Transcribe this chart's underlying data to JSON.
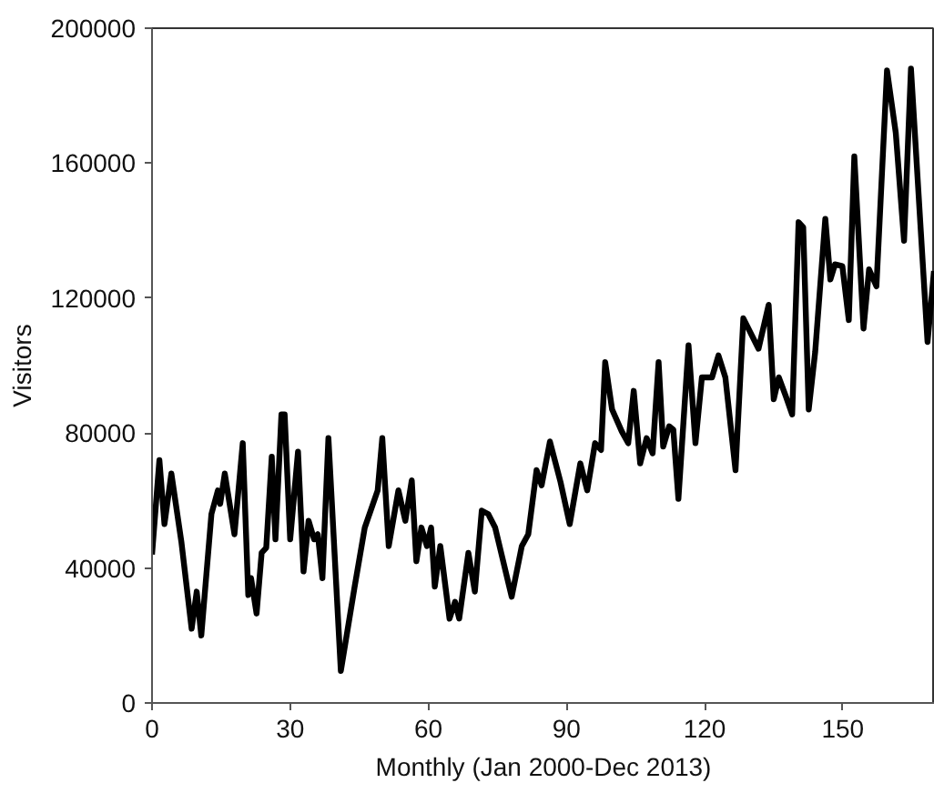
{
  "chart_data": {
    "type": "line",
    "xlabel": "Monthly (Jan 2000-Dec 2013)",
    "ylabel": "Visitors",
    "xlim": [
      0,
      170
    ],
    "ylim": [
      0,
      200000
    ],
    "xticks": [
      0,
      30,
      60,
      90,
      120,
      150
    ],
    "yticks": [
      0,
      40000,
      80000,
      120000,
      160000,
      200000
    ],
    "grid": false,
    "marker": "none",
    "line_style": "solid",
    "series": [
      {
        "color": "#000000",
        "x": [
          0,
          1.6,
          2.7,
          4.2,
          6.4,
          8.6,
          9.7,
          10.7,
          12.9,
          14.3,
          14.8,
          15.8,
          17.9,
          19.7,
          20.9,
          21.5,
          22.7,
          23.8,
          24.8,
          26,
          26.8,
          28.1,
          28.8,
          30,
          31.7,
          32.9,
          34,
          35.2,
          36,
          37,
          38.3,
          41,
          44,
          46.2,
          49,
          50,
          51.4,
          53.5,
          55,
          56.4,
          57.4,
          58.5,
          59.7,
          60.6,
          61.4,
          62.6,
          64.6,
          65.8,
          66.7,
          68.7,
          70.1,
          71.6,
          73,
          74.5,
          78.1,
          80.3,
          81.7,
          83.5,
          84.6,
          86.4,
          88.7,
          90.7,
          93,
          94.5,
          96.2,
          97.5,
          98.4,
          99.9,
          102,
          103.4,
          104.6,
          106,
          107.4,
          108.7,
          110,
          111,
          112.3,
          113.2,
          114.3,
          116.5,
          118,
          119.4,
          121.6,
          123,
          124.5,
          126.7,
          128.4,
          131.7,
          133.9,
          135,
          136.1,
          137.6,
          139,
          140.4,
          141.4,
          142.6,
          144,
          146.2,
          147.3,
          148.3,
          149.9,
          151.3,
          152.5,
          154.5,
          155.7,
          157.3,
          159.6,
          161.5,
          163.3,
          164.8,
          168.4,
          169.8
        ],
        "values": [
          44000,
          72000,
          53000,
          68000,
          47500,
          22000,
          33000,
          20000,
          56000,
          63000,
          59000,
          68000,
          50000,
          77000,
          32000,
          37000,
          26500,
          44500,
          46000,
          73000,
          48500,
          85500,
          85500,
          48500,
          74500,
          39000,
          54000,
          48500,
          50000,
          37000,
          78500,
          9500,
          34500,
          52000,
          63000,
          78500,
          46500,
          63000,
          54000,
          66000,
          42000,
          52000,
          46500,
          52000,
          34500,
          46500,
          25000,
          30000,
          25000,
          44500,
          33000,
          57000,
          56000,
          52000,
          31500,
          46500,
          50000,
          69000,
          64500,
          77500,
          65500,
          53000,
          71000,
          63000,
          77000,
          75000,
          101000,
          87000,
          80500,
          77000,
          92500,
          71000,
          78500,
          74000,
          101000,
          76000,
          82000,
          81000,
          60500,
          106000,
          77000,
          96500,
          96500,
          103000,
          96500,
          69000,
          114000,
          105000,
          118000,
          90000,
          96500,
          91000,
          85500,
          142500,
          141000,
          87000,
          104000,
          143500,
          125500,
          130000,
          129500,
          113500,
          162000,
          111000,
          128500,
          123500,
          187500,
          169000,
          137000,
          188000,
          107000,
          128000
        ]
      }
    ]
  }
}
